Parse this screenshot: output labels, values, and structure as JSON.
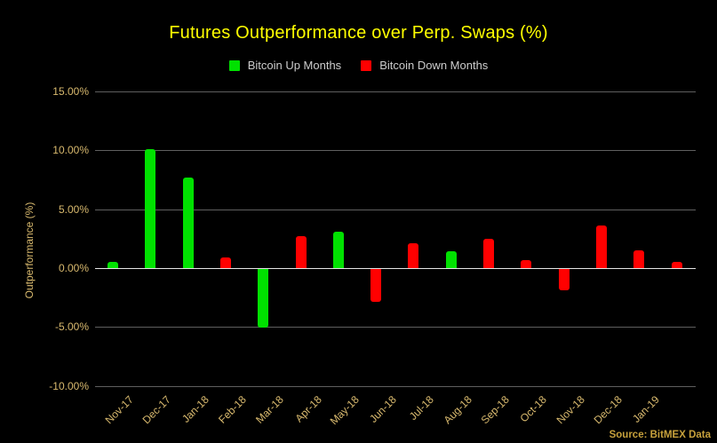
{
  "title": {
    "text": "Futures Outperformance over Perp. Swaps (%)"
  },
  "legend": {
    "items": [
      {
        "label": "Bitcoin Up Months",
        "series": "up"
      },
      {
        "label": "Bitcoin Down Months",
        "series": "down"
      }
    ]
  },
  "y_axis": {
    "title": "Outperformance (%)",
    "ticks": [
      {
        "label": "15.00%",
        "value": 15
      },
      {
        "label": "10.00%",
        "value": 10
      },
      {
        "label": "5.00%",
        "value": 5
      },
      {
        "label": "0.00%",
        "value": 0
      },
      {
        "label": "-5.00%",
        "value": -5
      },
      {
        "label": "-10.00%",
        "value": -10
      }
    ]
  },
  "x_axis": {
    "labels": [
      "Nov-17",
      "Dec-17",
      "Jan-18",
      "Feb-18",
      "Mar-18",
      "Apr-18",
      "May-18",
      "Jun-18",
      "Jul-18",
      "Aug-18",
      "Sep-18",
      "Oct-18",
      "Nov-18",
      "Dec-18",
      "Jan-19"
    ]
  },
  "source": {
    "text": "Source: BitMEX Data"
  },
  "colors": {
    "background": "#000000",
    "title": "#ffff00",
    "axis_text": "#d8b96e",
    "legend_text": "#cccccc",
    "up": "#00e100",
    "down": "#ff0000",
    "gridline": "#5f5f5f",
    "zero_line": "#e6e6e6",
    "source_text": "#c7a13c"
  },
  "chart_data": {
    "type": "bar",
    "title": "Futures Outperformance over Perp. Swaps (%)",
    "xlabel": "",
    "ylabel": "Outperformance (%)",
    "ylim": [
      -10,
      15
    ],
    "ytick_step": 5,
    "grid": true,
    "legend_position": "top",
    "series_names": [
      "Bitcoin Up Months",
      "Bitcoin Down Months"
    ],
    "unit": "%",
    "bars": [
      {
        "month": "Nov-17",
        "value": 0.5,
        "series": "up"
      },
      {
        "month": "Dec-17",
        "value": 10.1,
        "series": "up"
      },
      {
        "month": "Jan-18",
        "value": 7.7,
        "series": "up"
      },
      {
        "month": "Feb-18",
        "value": 0.9,
        "series": "down"
      },
      {
        "month": "Mar-18",
        "value": -5.0,
        "series": "up"
      },
      {
        "month": "Apr-18",
        "value": 2.7,
        "series": "down"
      },
      {
        "month": "May-18",
        "value": 3.1,
        "series": "up"
      },
      {
        "month": "Jun-18",
        "value": -2.8,
        "series": "down"
      },
      {
        "month": "Jul-18",
        "value": 2.1,
        "series": "down"
      },
      {
        "month": "Aug-18",
        "value": 1.4,
        "series": "up"
      },
      {
        "month": "Sep-18",
        "value": 2.5,
        "series": "down"
      },
      {
        "month": "Oct-18",
        "value": 0.7,
        "series": "down"
      },
      {
        "month": "Nov-18",
        "value": -1.8,
        "series": "down"
      },
      {
        "month": "Dec-18",
        "value": 3.6,
        "series": "down"
      },
      {
        "month": "Jan-19",
        "value": 1.5,
        "series": "down"
      },
      {
        "month": "",
        "value": 0.5,
        "series": "down"
      }
    ]
  }
}
